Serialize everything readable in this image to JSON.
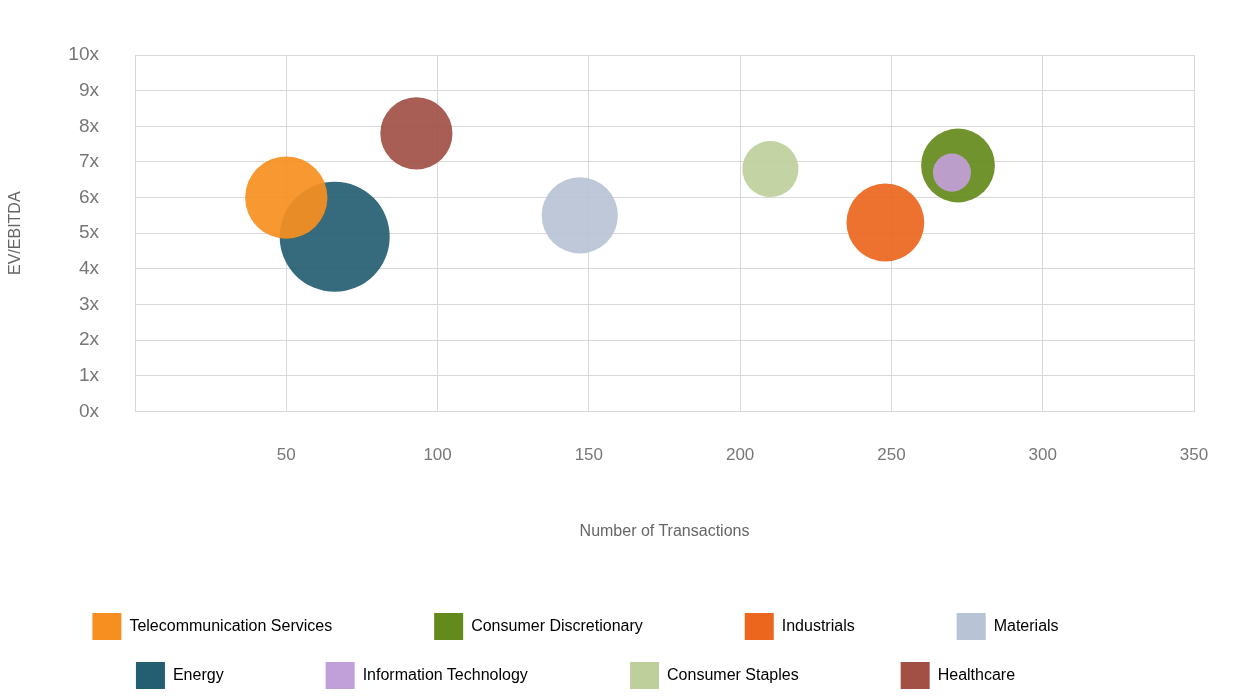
{
  "chart_data": {
    "type": "bubble",
    "xlabel": "Number of Transactions",
    "ylabel": "EV/EBITDA",
    "xlim": [
      0,
      350
    ],
    "xticks": [
      50,
      100,
      150,
      200,
      250,
      300,
      350
    ],
    "ylim": [
      0,
      10
    ],
    "yticks": [
      {
        "value": 0,
        "label": "0x"
      },
      {
        "value": 1,
        "label": "1x"
      },
      {
        "value": 2,
        "label": "2x"
      },
      {
        "value": 3,
        "label": "3x"
      },
      {
        "value": 4,
        "label": "4x"
      },
      {
        "value": 5,
        "label": "5x"
      },
      {
        "value": 6,
        "label": "6x"
      },
      {
        "value": 7,
        "label": "7x"
      },
      {
        "value": 8,
        "label": "8x"
      },
      {
        "value": 9,
        "label": "9x"
      },
      {
        "value": 10,
        "label": "10x"
      }
    ],
    "grid": true,
    "legend": "bottom",
    "series": [
      {
        "name": "Telecommunication Services",
        "color": "#f68f1f",
        "x": [
          50
        ],
        "values": [
          6.0
        ],
        "sizes": [
          0.56
        ]
      },
      {
        "name": "Consumer Discretionary",
        "color": "#658a1c",
        "x": [
          272
        ],
        "values": [
          6.9
        ],
        "sizes": [
          0.45
        ]
      },
      {
        "name": "Industrials",
        "color": "#ed661d",
        "x": [
          248
        ],
        "values": [
          5.3
        ],
        "sizes": [
          0.5
        ]
      },
      {
        "name": "Materials",
        "color": "#b9c3d6",
        "x": [
          147
        ],
        "values": [
          5.5
        ],
        "sizes": [
          0.48
        ]
      },
      {
        "name": "Energy",
        "color": "#245e71",
        "x": [
          66
        ],
        "values": [
          4.9
        ],
        "sizes": [
          1
        ]
      },
      {
        "name": "Information Technology",
        "color": "#c19fd8",
        "x": [
          270
        ],
        "values": [
          6.7
        ],
        "sizes": [
          0.12
        ]
      },
      {
        "name": "Consumer Staples",
        "color": "#bfcf9b",
        "x": [
          210
        ],
        "values": [
          6.8
        ],
        "sizes": [
          0.26
        ]
      },
      {
        "name": "Healthcare",
        "color": "#a25046",
        "x": [
          93
        ],
        "values": [
          7.8
        ],
        "sizes": [
          0.43
        ]
      }
    ]
  }
}
